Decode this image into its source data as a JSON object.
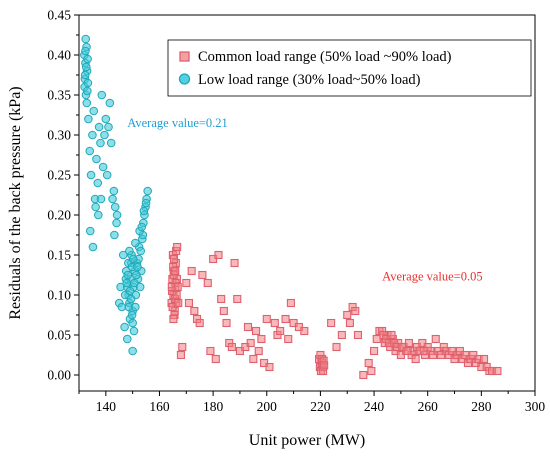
{
  "chart_data": {
    "type": "scatter",
    "title": "",
    "xlabel": "Unit power (MW)",
    "ylabel": "Residuals of the back pressure (kPa)",
    "xlim": [
      130,
      300
    ],
    "ylim": [
      -0.02,
      0.45
    ],
    "xticks": [
      140,
      160,
      180,
      200,
      220,
      240,
      260,
      280,
      300
    ],
    "yticks": [
      0.0,
      0.05,
      0.1,
      0.15,
      0.2,
      0.25,
      0.3,
      0.35,
      0.4,
      0.45
    ],
    "ytick_labels": [
      "0.00",
      "0.05",
      "0.10",
      "0.15",
      "0.20",
      "0.25",
      "0.30",
      "0.35",
      "0.40",
      "0.45"
    ],
    "grid": false,
    "legend_position": "top-right",
    "series": [
      {
        "name": "Common load range (50% load ~90% load)",
        "marker": "square",
        "color": "#f08080",
        "edge": "#e06070",
        "points": [
          [
            164.5,
            0.09
          ],
          [
            164.8,
            0.12
          ],
          [
            165.0,
            0.15
          ],
          [
            165.2,
            0.1
          ],
          [
            165.5,
            0.13
          ],
          [
            165.7,
            0.08
          ],
          [
            165.9,
            0.11
          ],
          [
            166.1,
            0.14
          ],
          [
            166.3,
            0.09
          ],
          [
            166.5,
            0.12
          ],
          [
            164.7,
            0.105
          ],
          [
            165.3,
            0.125
          ],
          [
            165.8,
            0.095
          ],
          [
            166.0,
            0.115
          ],
          [
            165.1,
            0.135
          ],
          [
            166.2,
            0.155
          ],
          [
            164.9,
            0.085
          ],
          [
            165.6,
            0.075
          ],
          [
            166.4,
            0.1
          ],
          [
            165.4,
            0.145
          ],
          [
            164.6,
            0.11
          ],
          [
            165.9,
            0.13
          ],
          [
            166.6,
            0.16
          ],
          [
            165.2,
            0.07
          ],
          [
            166.8,
            0.11
          ],
          [
            167.0,
            0.09
          ],
          [
            168,
            0.025
          ],
          [
            168.5,
            0.035
          ],
          [
            170,
            0.115
          ],
          [
            171,
            0.09
          ],
          [
            172,
            0.13
          ],
          [
            173,
            0.08
          ],
          [
            174,
            0.07
          ],
          [
            175,
            0.065
          ],
          [
            176,
            0.125
          ],
          [
            178,
            0.115
          ],
          [
            179,
            0.03
          ],
          [
            180,
            0.145
          ],
          [
            181,
            0.02
          ],
          [
            182,
            0.15
          ],
          [
            183,
            0.095
          ],
          [
            184,
            0.08
          ],
          [
            185,
            0.065
          ],
          [
            186,
            0.04
          ],
          [
            187,
            0.035
          ],
          [
            188,
            0.14
          ],
          [
            189,
            0.095
          ],
          [
            190,
            0.03
          ],
          [
            192,
            0.035
          ],
          [
            193,
            0.06
          ],
          [
            194,
            0.04
          ],
          [
            195,
            0.02
          ],
          [
            196,
            0.055
          ],
          [
            197,
            0.03
          ],
          [
            198,
            0.045
          ],
          [
            199,
            0.015
          ],
          [
            200,
            0.07
          ],
          [
            201,
            0.01
          ],
          [
            203,
            0.065
          ],
          [
            204,
            0.05
          ],
          [
            205,
            0.055
          ],
          [
            207,
            0.07
          ],
          [
            208,
            0.045
          ],
          [
            209,
            0.09
          ],
          [
            210,
            0.065
          ],
          [
            212,
            0.06
          ],
          [
            214,
            0.055
          ],
          [
            219.5,
            0.02
          ],
          [
            219.8,
            0.01
          ],
          [
            220.0,
            0.025
          ],
          [
            220.2,
            0.005
          ],
          [
            220.4,
            0.015
          ],
          [
            220.6,
            0.02
          ],
          [
            220.8,
            0.01
          ],
          [
            221.0,
            0.005
          ],
          [
            221.2,
            0.018
          ],
          [
            221.4,
            0.012
          ],
          [
            224,
            0.065
          ],
          [
            226,
            0.035
          ],
          [
            228,
            0.05
          ],
          [
            230,
            0.075
          ],
          [
            231,
            0.065
          ],
          [
            232,
            0.085
          ],
          [
            233,
            0.08
          ],
          [
            234,
            0.05
          ],
          [
            236,
            0.0
          ],
          [
            238,
            0.015
          ],
          [
            239,
            0.005
          ],
          [
            240,
            0.03
          ],
          [
            241,
            0.045
          ],
          [
            242,
            0.055
          ],
          [
            243,
            0.055
          ],
          [
            244,
            0.04
          ],
          [
            245,
            0.05
          ],
          [
            246,
            0.035
          ],
          [
            247,
            0.045
          ],
          [
            248,
            0.03
          ],
          [
            249,
            0.04
          ],
          [
            250,
            0.025
          ],
          [
            251,
            0.035
          ],
          [
            252,
            0.03
          ],
          [
            253,
            0.04
          ],
          [
            254,
            0.025
          ],
          [
            255,
            0.03
          ],
          [
            256,
            0.035
          ],
          [
            257,
            0.03
          ],
          [
            258,
            0.04
          ],
          [
            259,
            0.025
          ],
          [
            260,
            0.035
          ],
          [
            261,
            0.03
          ],
          [
            262,
            0.025
          ],
          [
            263,
            0.045
          ],
          [
            264,
            0.03
          ],
          [
            265,
            0.025
          ],
          [
            266,
            0.035
          ],
          [
            267,
            0.03
          ],
          [
            268,
            0.025
          ],
          [
            269,
            0.03
          ],
          [
            270,
            0.02
          ],
          [
            271,
            0.025
          ],
          [
            272,
            0.03
          ],
          [
            273,
            0.02
          ],
          [
            274,
            0.025
          ],
          [
            275,
            0.015
          ],
          [
            276,
            0.02
          ],
          [
            277,
            0.025
          ],
          [
            278,
            0.015
          ],
          [
            279,
            0.02
          ],
          [
            280,
            0.01
          ],
          [
            281,
            0.02
          ],
          [
            282,
            0.01
          ],
          [
            283,
            0.005
          ],
          [
            284,
            0.005
          ],
          [
            286,
            0.005
          ],
          [
            243.5,
            0.05
          ],
          [
            244.5,
            0.045
          ],
          [
            245.5,
            0.04
          ],
          [
            246.5,
            0.05
          ],
          [
            247.5,
            0.04
          ],
          [
            248.5,
            0.035
          ],
          [
            250.5,
            0.035
          ],
          [
            252.5,
            0.03
          ],
          [
            255.5,
            0.02
          ],
          [
            258.5,
            0.03
          ]
        ]
      },
      {
        "name": "Low load range (30% load~50% load)",
        "marker": "circle",
        "color": "#40c8d8",
        "edge": "#1fa8b8",
        "points": [
          [
            132.0,
            0.4
          ],
          [
            132.2,
            0.37
          ],
          [
            132.4,
            0.39
          ],
          [
            132.6,
            0.35
          ],
          [
            132.8,
            0.41
          ],
          [
            133.0,
            0.38
          ],
          [
            132.1,
            0.36
          ],
          [
            132.5,
            0.42
          ],
          [
            132.9,
            0.34
          ],
          [
            133.2,
            0.395
          ],
          [
            132.3,
            0.375
          ],
          [
            132.7,
            0.385
          ],
          [
            133.1,
            0.355
          ],
          [
            132.4,
            0.405
          ],
          [
            133.3,
            0.365
          ],
          [
            133.5,
            0.32
          ],
          [
            134,
            0.28
          ],
          [
            134.5,
            0.25
          ],
          [
            135,
            0.3
          ],
          [
            135.5,
            0.33
          ],
          [
            136,
            0.22
          ],
          [
            136.5,
            0.27
          ],
          [
            137,
            0.24
          ],
          [
            137.5,
            0.31
          ],
          [
            138,
            0.29
          ],
          [
            138.5,
            0.35
          ],
          [
            139,
            0.26
          ],
          [
            139.5,
            0.3
          ],
          [
            140,
            0.32
          ],
          [
            140.5,
            0.25
          ],
          [
            141,
            0.31
          ],
          [
            141.5,
            0.34
          ],
          [
            142,
            0.29
          ],
          [
            142.5,
            0.22
          ],
          [
            143,
            0.23
          ],
          [
            143.5,
            0.21
          ],
          [
            144,
            0.19
          ],
          [
            134.2,
            0.18
          ],
          [
            135.2,
            0.16
          ],
          [
            136.2,
            0.21
          ],
          [
            137.2,
            0.2
          ],
          [
            138.2,
            0.22
          ],
          [
            143.2,
            0.175
          ],
          [
            144.2,
            0.2
          ],
          [
            145,
            0.09
          ],
          [
            145.5,
            0.11
          ],
          [
            146,
            0.085
          ],
          [
            146.5,
            0.15
          ],
          [
            147,
            0.06
          ],
          [
            147.5,
            0.12
          ],
          [
            148,
            0.045
          ],
          [
            148.5,
            0.1
          ],
          [
            149,
            0.07
          ],
          [
            149.5,
            0.14
          ],
          [
            150,
            0.03
          ],
          [
            150.5,
            0.055
          ],
          [
            147.2,
            0.1
          ],
          [
            147.6,
            0.13
          ],
          [
            148.0,
            0.11
          ],
          [
            148.4,
            0.14
          ],
          [
            148.8,
            0.09
          ],
          [
            149.2,
            0.12
          ],
          [
            149.6,
            0.15
          ],
          [
            150.0,
            0.08
          ],
          [
            150.4,
            0.11
          ],
          [
            150.8,
            0.13
          ],
          [
            151.2,
            0.1
          ],
          [
            151.6,
            0.14
          ],
          [
            152.0,
            0.12
          ],
          [
            152.4,
            0.16
          ],
          [
            152.8,
            0.11
          ],
          [
            153.2,
            0.13
          ],
          [
            153.6,
            0.17
          ],
          [
            154.0,
            0.19
          ],
          [
            154.4,
            0.2
          ],
          [
            154.8,
            0.21
          ],
          [
            155.2,
            0.22
          ],
          [
            155.6,
            0.23
          ],
          [
            148.2,
            0.125
          ],
          [
            149.0,
            0.105
          ],
          [
            149.8,
            0.135
          ],
          [
            150.6,
            0.115
          ],
          [
            151.4,
            0.125
          ],
          [
            152.2,
            0.145
          ],
          [
            153.0,
            0.155
          ],
          [
            153.8,
            0.175
          ],
          [
            148.6,
            0.085
          ],
          [
            149.4,
            0.095
          ],
          [
            150.2,
            0.145
          ],
          [
            151.0,
            0.165
          ],
          [
            151.8,
            0.135
          ],
          [
            152.6,
            0.18
          ],
          [
            153.4,
            0.185
          ],
          [
            154.2,
            0.205
          ],
          [
            155.0,
            0.215
          ],
          [
            149.8,
            0.075
          ],
          [
            150.0,
            0.065
          ],
          [
            151.0,
            0.085
          ],
          [
            147.8,
            0.115
          ],
          [
            148.8,
            0.155
          ]
        ]
      }
    ],
    "annotations": [
      {
        "text": "Average value=0.21",
        "x": 148,
        "y": 0.31,
        "color": "#1e9ed6"
      },
      {
        "text": "Average value=0.05",
        "x": 243,
        "y": 0.118,
        "color": "#e83030"
      }
    ]
  }
}
